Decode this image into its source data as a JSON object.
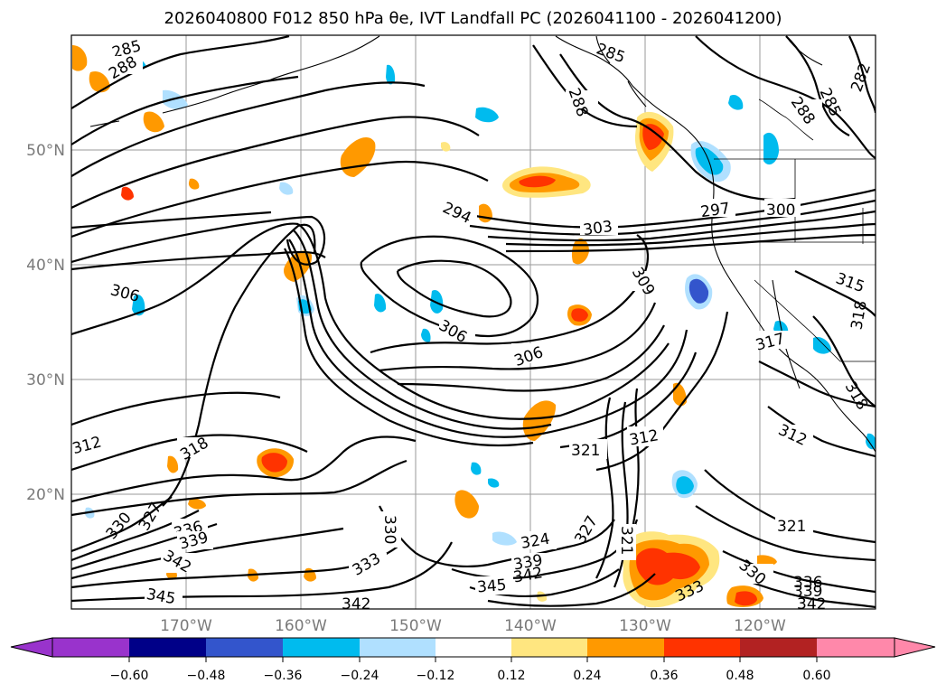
{
  "title": "2026040800 F012 850 hPa θe, IVT Landfall PC (2026041100 - 2026041200)",
  "map": {
    "lon_range": [
      -180,
      -110
    ],
    "lat_range": [
      10,
      60
    ],
    "lat_labels": [
      "20°N",
      "30°N",
      "40°N",
      "50°N"
    ],
    "lon_labels": [
      "170°W",
      "160°W",
      "150°W",
      "140°W",
      "130°W",
      "120°W"
    ],
    "contour_labels": [
      "285",
      "288",
      "288",
      "285",
      "288",
      "285",
      "282",
      "294",
      "303",
      "297",
      "300",
      "309",
      "306",
      "306",
      "306",
      "315",
      "318",
      "317",
      "312",
      "318",
      "321",
      "312",
      "312",
      "318",
      "330",
      "327",
      "336",
      "339",
      "342",
      "345",
      "330",
      "333",
      "324",
      "339",
      "342",
      "345",
      "327",
      "321",
      "333",
      "330",
      "336",
      "339",
      "342",
      "321",
      "342"
    ]
  },
  "colorbar": {
    "ticks": [
      "−0.60",
      "−0.48",
      "−0.36",
      "−0.24",
      "−0.12",
      "0.12",
      "0.24",
      "0.36",
      "0.48",
      "0.60"
    ],
    "colors": [
      "#9933cc",
      "#000088",
      "#3355cc",
      "#00bbee",
      "#b0e0ff",
      "#ffffff",
      "#ffe680",
      "#ff9900",
      "#ff3300",
      "#b22222",
      "#ff88aa"
    ]
  }
}
